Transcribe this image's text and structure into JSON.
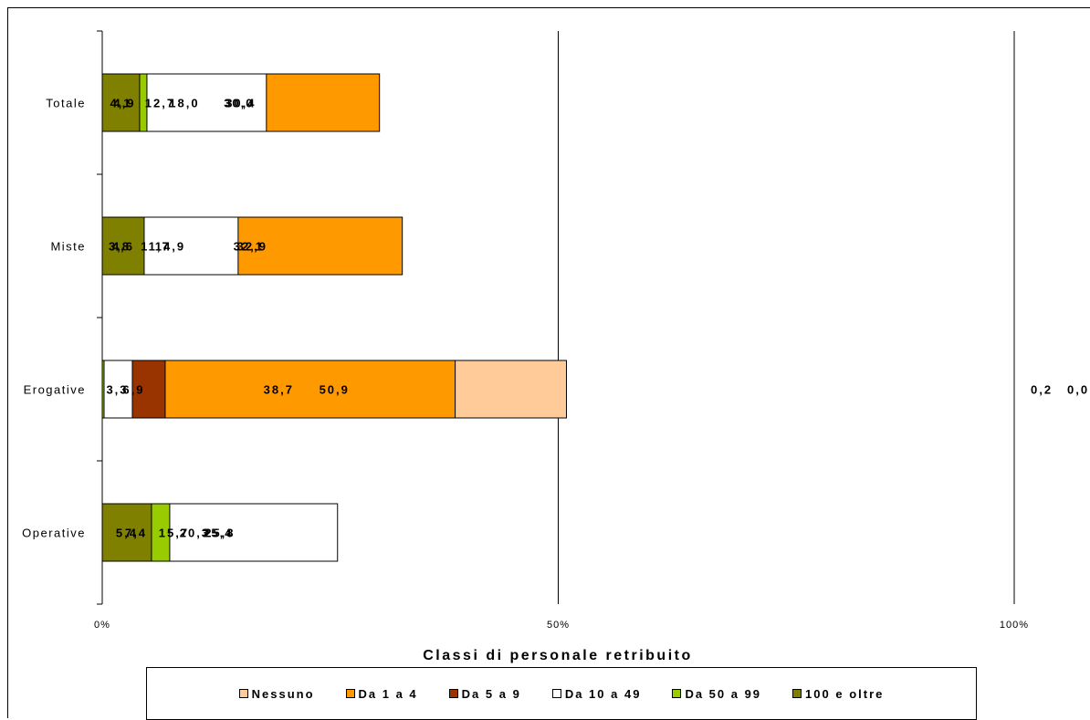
{
  "chart_data": {
    "type": "bar",
    "orientation": "horizontal",
    "stacked": "percent",
    "title": "",
    "xlabel": "Classi di personale retribuito",
    "ylabel": "",
    "xlim": [
      0,
      100
    ],
    "x_tick_labels": [
      "0%",
      "50%",
      "100%"
    ],
    "grid": "vertical at 50%",
    "legend_position": "bottom",
    "categories": [
      "Totale",
      "Miste",
      "Erogative",
      "Operative"
    ],
    "series": [
      {
        "name": "Nessuno",
        "color": "#FFCC99",
        "values": [
          30.0,
          32.1,
          50.9,
          20.3
        ],
        "labels": [
          "30,0",
          "32,1",
          "50,9",
          "20,3"
        ]
      },
      {
        "name": "Da 1 a 4",
        "color": "#FF9900",
        "values": [
          30.4,
          32.9,
          38.7,
          25.4
        ],
        "labels": [
          "30,4",
          "32,9",
          "38,7",
          "25,4"
        ]
      },
      {
        "name": "Da 5 a 9",
        "color": "#993300",
        "values": [
          12.7,
          11.7,
          6.9,
          15.7
        ],
        "labels": [
          "12,7",
          "11,7",
          "6,9",
          "15,7"
        ]
      },
      {
        "name": "Da 10 a 49",
        "color": "#FFFFFF",
        "values": [
          18.0,
          14.9,
          3.3,
          25.8
        ],
        "labels": [
          "18,0",
          "14,9",
          "3,3",
          "25,8"
        ]
      },
      {
        "name": "Da 50 a 99",
        "color": "#99CC00",
        "values": [
          4.9,
          3.8,
          0.2,
          7.4
        ],
        "labels": [
          "4,9",
          "3,8",
          "0,2",
          "7,4"
        ]
      },
      {
        "name": "100 e oltre",
        "color": "#808000",
        "values": [
          4.1,
          4.6,
          0.0,
          5.4
        ],
        "labels": [
          "4,1",
          "4,6",
          "0,0",
          "5,4"
        ]
      }
    ]
  }
}
